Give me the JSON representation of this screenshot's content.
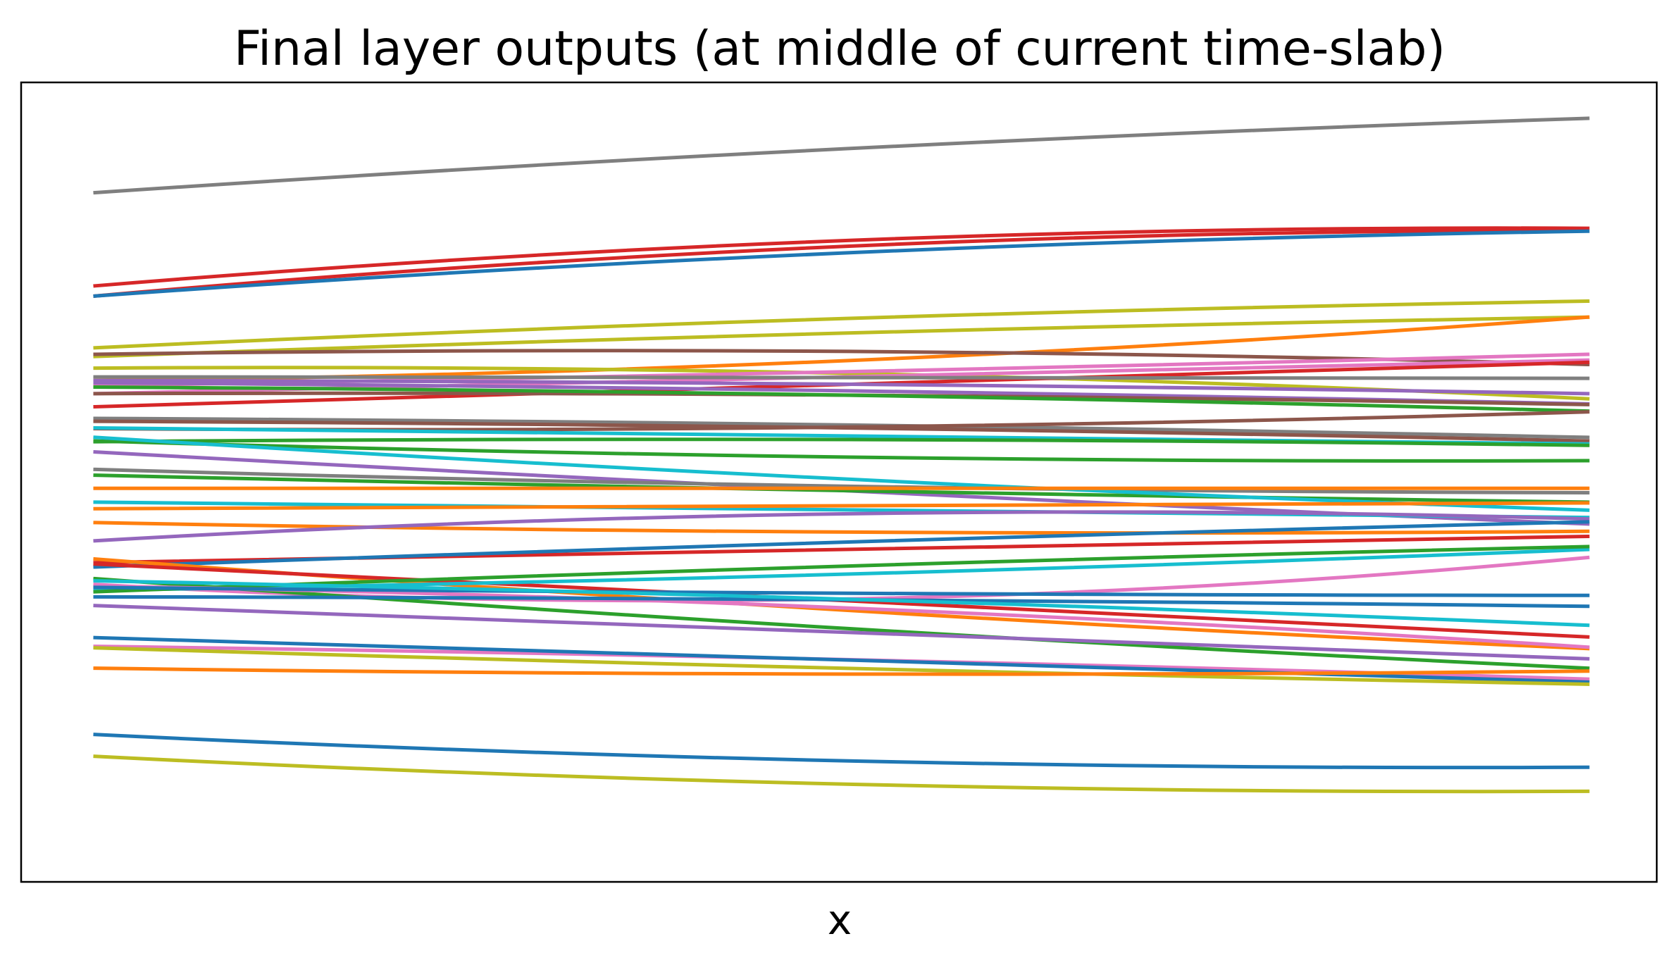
{
  "chart_data": {
    "type": "line",
    "title": "Final layer outputs (at middle of current time-slab)",
    "xlabel": "x",
    "ylabel": "",
    "xticks": false,
    "yticks": false,
    "grid": false,
    "legend": "none",
    "x": [
      0,
      0.5,
      1
    ],
    "ylim": [
      0,
      1000
    ],
    "series": [
      {
        "color": "#7f7f7f",
        "values": [
          898,
          958,
          1000
        ]
      },
      {
        "color": "#d62728",
        "values": [
          770,
          832,
          849
        ]
      },
      {
        "color": "#d62728",
        "values": [
          756,
          824,
          846
        ]
      },
      {
        "color": "#1f77b4",
        "values": [
          756,
          815,
          845
        ]
      },
      {
        "color": "#bcbd22",
        "values": [
          685,
          725,
          749
        ]
      },
      {
        "color": "#bcbd22",
        "values": [
          673,
          705,
          727
        ]
      },
      {
        "color": "#ff7f0e",
        "values": [
          640,
          667,
          727
        ]
      },
      {
        "color": "#8c564b",
        "values": [
          676,
          680,
          662
        ]
      },
      {
        "color": "#bcbd22",
        "values": [
          657,
          650,
          615
        ]
      },
      {
        "color": "#e377c2",
        "values": [
          633,
          652,
          676
        ]
      },
      {
        "color": "#e377c2",
        "values": [
          622,
          647,
          668
        ]
      },
      {
        "color": "#d62728",
        "values": [
          604,
          634,
          665
        ]
      },
      {
        "color": "#9467bd",
        "values": [
          640,
          635,
          622
        ]
      },
      {
        "color": "#9467bd",
        "values": [
          637,
          626,
          608
        ]
      },
      {
        "color": "#8c564b",
        "values": [
          622,
          620,
          607
        ]
      },
      {
        "color": "#2ca02c",
        "values": [
          631,
          620,
          598
        ]
      },
      {
        "color": "#7f7f7f",
        "values": [
          645,
          644,
          643
        ]
      },
      {
        "color": "#7f7f7f",
        "values": [
          588,
          579,
          562
        ]
      },
      {
        "color": "#8c564b",
        "values": [
          574,
          576,
          597
        ]
      },
      {
        "color": "#8c564b",
        "values": [
          584,
          575,
          557
        ]
      },
      {
        "color": "#17becf",
        "values": [
          575,
          563,
          553
        ]
      },
      {
        "color": "#2ca02c",
        "values": [
          556,
          559,
          551
        ]
      },
      {
        "color": "#2ca02c",
        "values": [
          557,
          535,
          530
        ]
      },
      {
        "color": "#9467bd",
        "values": [
          542,
          489,
          443
        ]
      },
      {
        "color": "#7f7f7f",
        "values": [
          518,
          495,
          486
        ]
      },
      {
        "color": "#2ca02c",
        "values": [
          510,
          489,
          473
        ]
      },
      {
        "color": "#17becf",
        "values": [
          562,
          505,
          462
        ]
      },
      {
        "color": "#ff7f0e",
        "values": [
          492,
          492,
          492
        ]
      },
      {
        "color": "#17becf",
        "values": [
          473,
          462,
          452
        ]
      },
      {
        "color": "#ff7f0e",
        "values": [
          464,
          466,
          472
        ]
      },
      {
        "color": "#ff7f0e",
        "values": [
          445,
          432,
          433
        ]
      },
      {
        "color": "#9467bd",
        "values": [
          420,
          457,
          450
        ]
      },
      {
        "color": "#d62728",
        "values": [
          390,
          410,
          426
        ]
      },
      {
        "color": "#1f77b4",
        "values": [
          384,
          418,
          446
        ]
      },
      {
        "color": "#ff7f0e",
        "values": [
          395,
          325,
          272
        ]
      },
      {
        "color": "#d62728",
        "values": [
          388,
          338,
          288
        ]
      },
      {
        "color": "#e377c2",
        "values": [
          360,
          340,
          397
        ]
      },
      {
        "color": "#17becf",
        "values": [
          352,
          374,
          408
        ]
      },
      {
        "color": "#2ca02c",
        "values": [
          350,
          385,
          412
        ]
      },
      {
        "color": "#2ca02c",
        "values": [
          368,
          300,
          245
        ]
      },
      {
        "color": "#e377c2",
        "values": [
          358,
          328,
          274
        ]
      },
      {
        "color": "#1f77b4",
        "values": [
          356,
          348,
          345
        ]
      },
      {
        "color": "#1f77b4",
        "values": [
          343,
          339,
          330
        ]
      },
      {
        "color": "#17becf",
        "values": [
          365,
          340,
          304
        ]
      },
      {
        "color": "#9467bd",
        "values": [
          331,
          293,
          258
        ]
      },
      {
        "color": "#e377c2",
        "values": [
          275,
          257,
          230
        ]
      },
      {
        "color": "#1f77b4",
        "values": [
          287,
          255,
          226
        ]
      },
      {
        "color": "#bcbd22",
        "values": [
          273,
          245,
          223
        ]
      },
      {
        "color": "#ff7f0e",
        "values": [
          245,
          237,
          241
        ]
      },
      {
        "color": "#1f77b4",
        "values": [
          154,
          118,
          109
        ]
      },
      {
        "color": "#bcbd22",
        "values": [
          124,
          86,
          76
        ]
      }
    ]
  }
}
